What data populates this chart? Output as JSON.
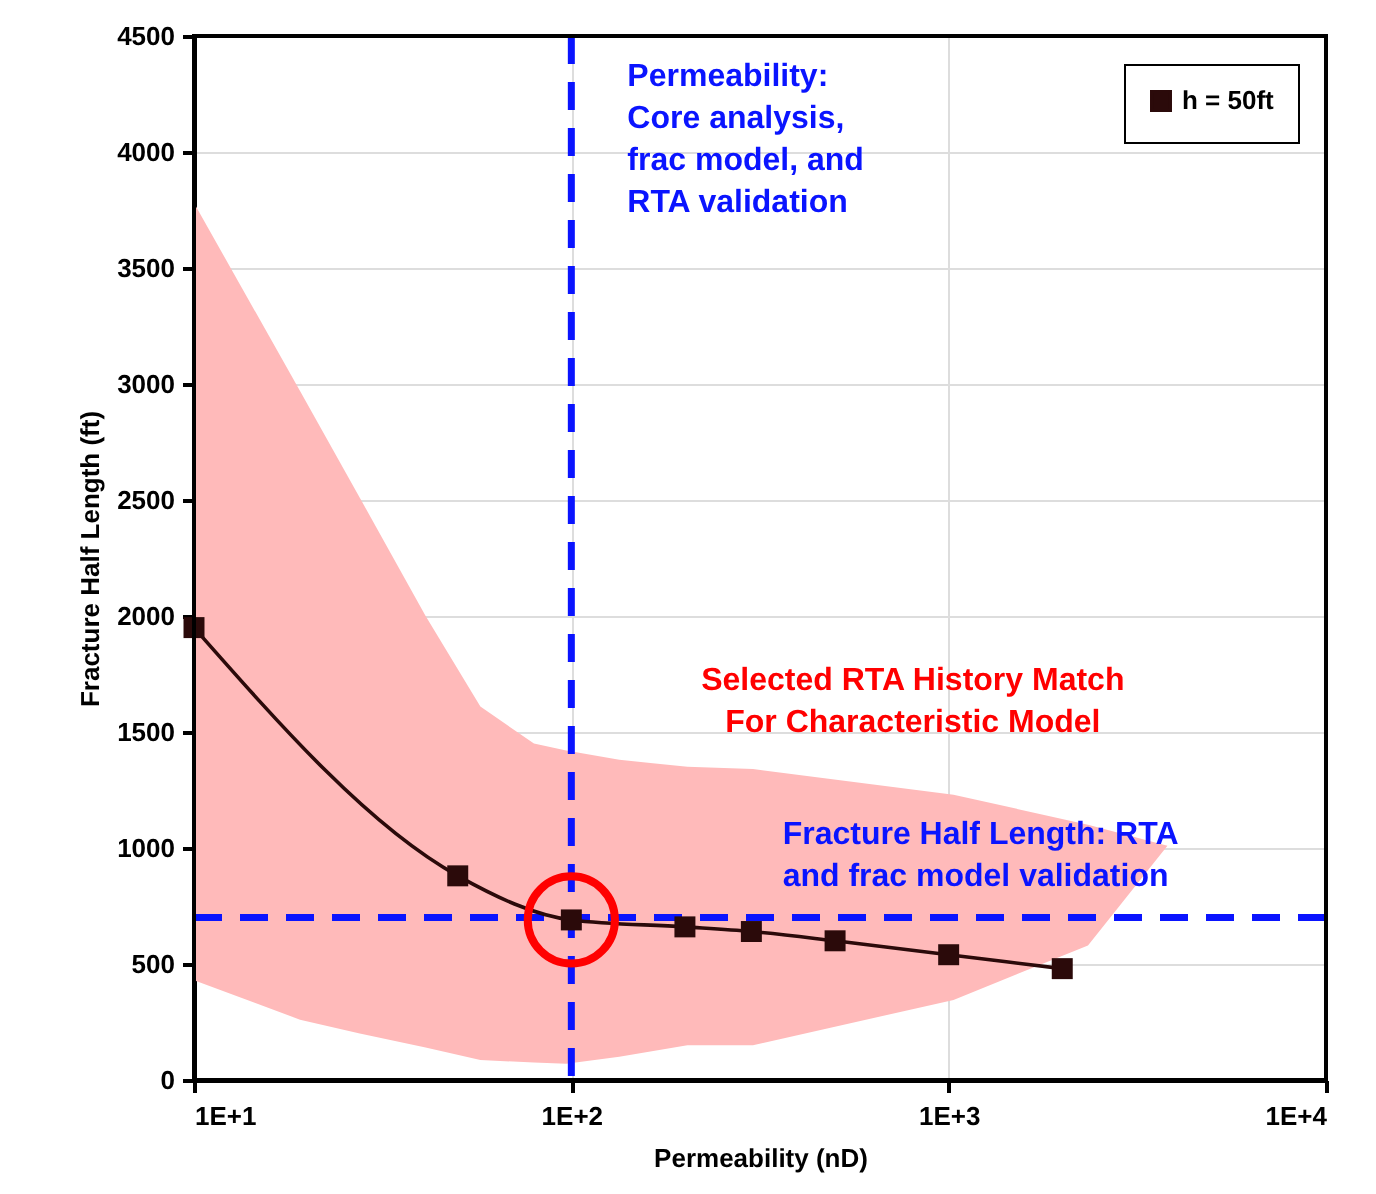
{
  "chart_data": {
    "type": "line",
    "xlabel": "Permeability (nD)",
    "ylabel": "Fracture Half Length (ft)",
    "x": [
      10,
      50,
      100,
      200,
      300,
      500,
      1000,
      2000
    ],
    "series": [
      {
        "name": "h = 50ft",
        "color": "#2b0a0a",
        "marker": "square",
        "values": [
          1950,
          880,
          690,
          660,
          640,
          600,
          540,
          480
        ]
      },
      {
        "type": "scatter",
        "color": "#ff0000",
        "marker": "circle",
        "x": [
          100
        ],
        "values": [
          690
        ]
      },
      {
        "color": "#ffbaba",
        "x": [
          10,
          19.1,
          27.5,
          41.1,
          57.4,
          79.6,
          96.9,
          134,
          203,
          303,
          1030,
          2340,
          3800
        ],
        "values": [
          null,
          null,
          null,
          null,
          null,
          null,
          null,
          null,
          null,
          null,
          null,
          null,
          null
        ],
        "lower": [
          430,
          260,
          200,
          140,
          86,
          75,
          70,
          100,
          150,
          150,
          345,
          580,
          1010
        ],
        "upper": [
          3780,
          2970,
          2510,
          2000,
          1610,
          1450,
          1420,
          1380,
          1350,
          1340,
          1230,
          1100,
          1010
        ]
      }
    ],
    "xlim": [
      10,
      10000
    ],
    "xticks": [
      {
        "value": 10,
        "label": "1E+1"
      },
      {
        "value": 100,
        "label": "1E+2"
      },
      {
        "value": 1000,
        "label": "1E+3"
      },
      {
        "value": 10000,
        "label": "1E+4"
      }
    ],
    "ylim": [
      0,
      4500
    ],
    "yticks": [
      0,
      500,
      1000,
      1500,
      2000,
      2500,
      3000,
      3500,
      4000,
      4500
    ],
    "log": "x",
    "grid": true,
    "legend": "top right",
    "line_style": "solid",
    "ref_lines": [
      {
        "axis": "x",
        "value": 100,
        "label": "Permeability:\nCore analysis,\nfrac model, and\nRTA validation",
        "color": "#0a14ff",
        "line_style": "dashed"
      },
      {
        "axis": "y",
        "value": 700,
        "label": "Fracture Half Length: RTA\nand frac model validation",
        "color": "#0a14ff",
        "line_style": "dashed"
      }
    ],
    "annotations": [
      "Selected RTA History Match\nFor Characteristic Model"
    ]
  }
}
